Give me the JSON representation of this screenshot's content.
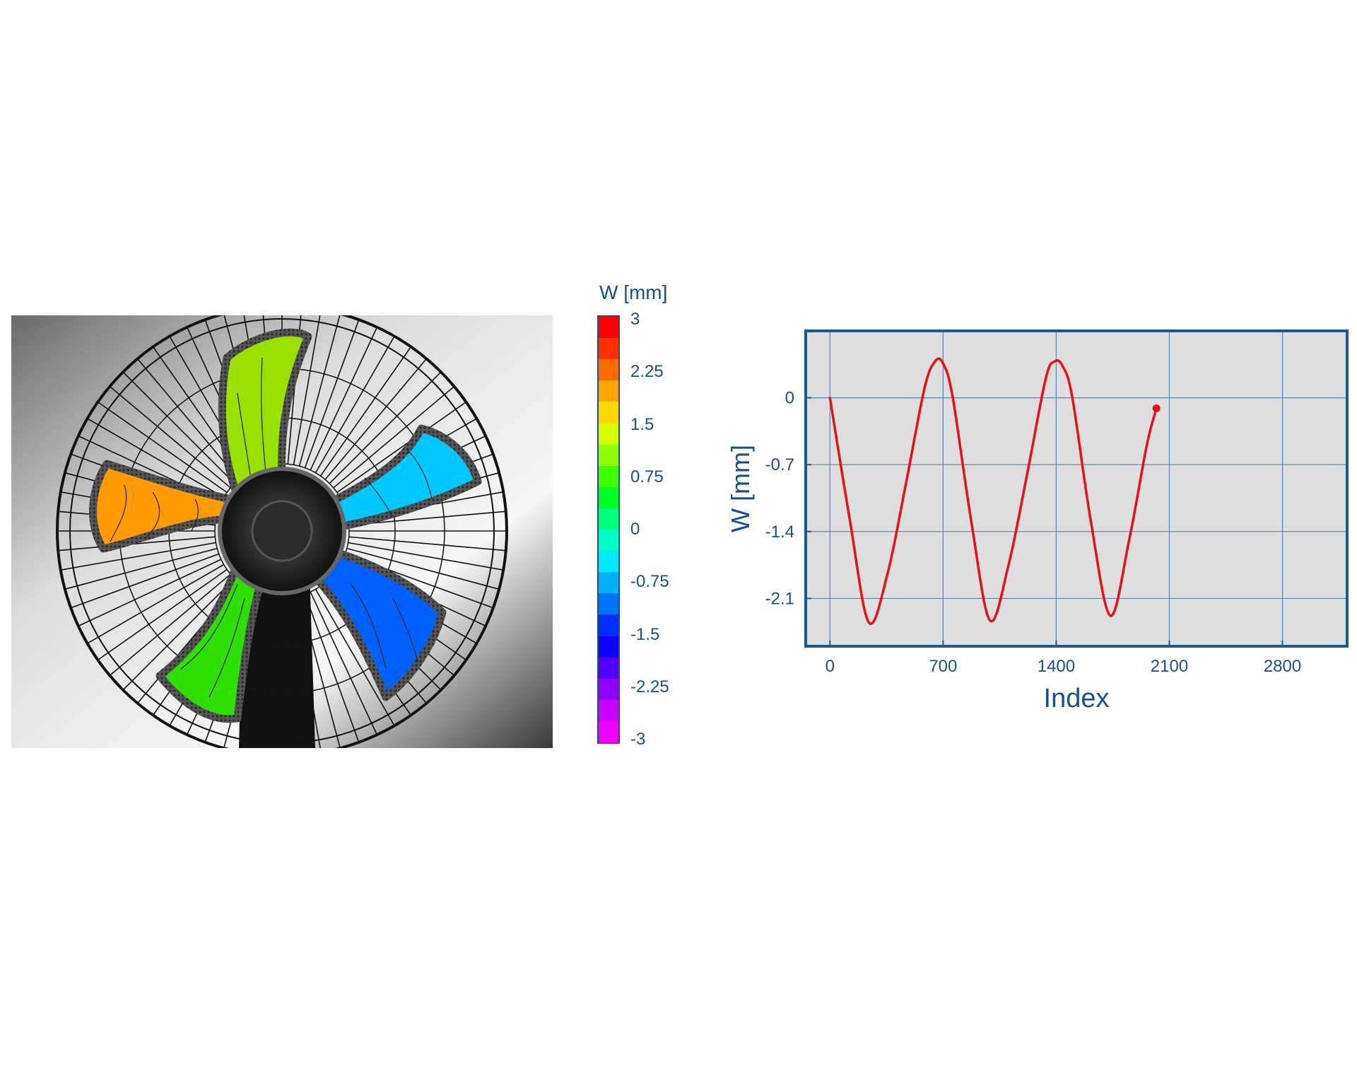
{
  "colorbar": {
    "title": "W [mm]",
    "tick_labels": [
      "3",
      "2.25",
      "1.5",
      "0.75",
      "0",
      "-0.75",
      "-1.5",
      "-2.25",
      "-3"
    ],
    "colors": [
      "#ff0000",
      "#ff3000",
      "#ff6a00",
      "#ffa400",
      "#ffd800",
      "#d8ff00",
      "#8cff00",
      "#3cff00",
      "#00ff20",
      "#00ff7a",
      "#00ffc8",
      "#00e8ff",
      "#00b0ff",
      "#0070ff",
      "#0030ff",
      "#1000ff",
      "#5000ff",
      "#9000ff",
      "#c800ff",
      "#f000ff"
    ]
  },
  "fan_image": {
    "blade_colors": {
      "top": "#9be000",
      "left": "#ff9a00",
      "right": "#00c8ff",
      "bottom_left": "#2ee000",
      "bottom_right": "#0060ff"
    }
  },
  "chart_data": {
    "type": "line",
    "title": "",
    "xlabel": "Index",
    "ylabel": "W [mm]",
    "xlim": [
      -150,
      3200
    ],
    "ylim": [
      -2.6,
      0.7
    ],
    "x_ticks": [
      0,
      700,
      1400,
      2100,
      2800
    ],
    "x_tick_labels": [
      "0",
      "700",
      "1400",
      "2100",
      "2800"
    ],
    "y_ticks": [
      0,
      -0.7,
      -1.4,
      -2.1
    ],
    "y_tick_labels": [
      "0",
      "-0.7",
      "-1.4",
      "-2.1"
    ],
    "grid": true,
    "series": [
      {
        "name": "W",
        "color": "#e8101a",
        "x": [
          0,
          125,
          240,
          355,
          470,
          585,
          650,
          700,
          760,
          875,
          990,
          1105,
          1220,
          1335,
          1390,
          1440,
          1500,
          1615,
          1735,
          1850,
          1960,
          2020
        ],
        "values": [
          0,
          -1.3,
          -2.35,
          -1.85,
          -0.9,
          0.1,
          0.38,
          0.36,
          0.0,
          -1.3,
          -2.33,
          -1.75,
          -0.8,
          0.2,
          0.38,
          0.33,
          0.0,
          -1.3,
          -2.28,
          -1.5,
          -0.5,
          -0.11
        ]
      }
    ],
    "end_marker": {
      "x": 2020,
      "value": -0.11
    }
  }
}
